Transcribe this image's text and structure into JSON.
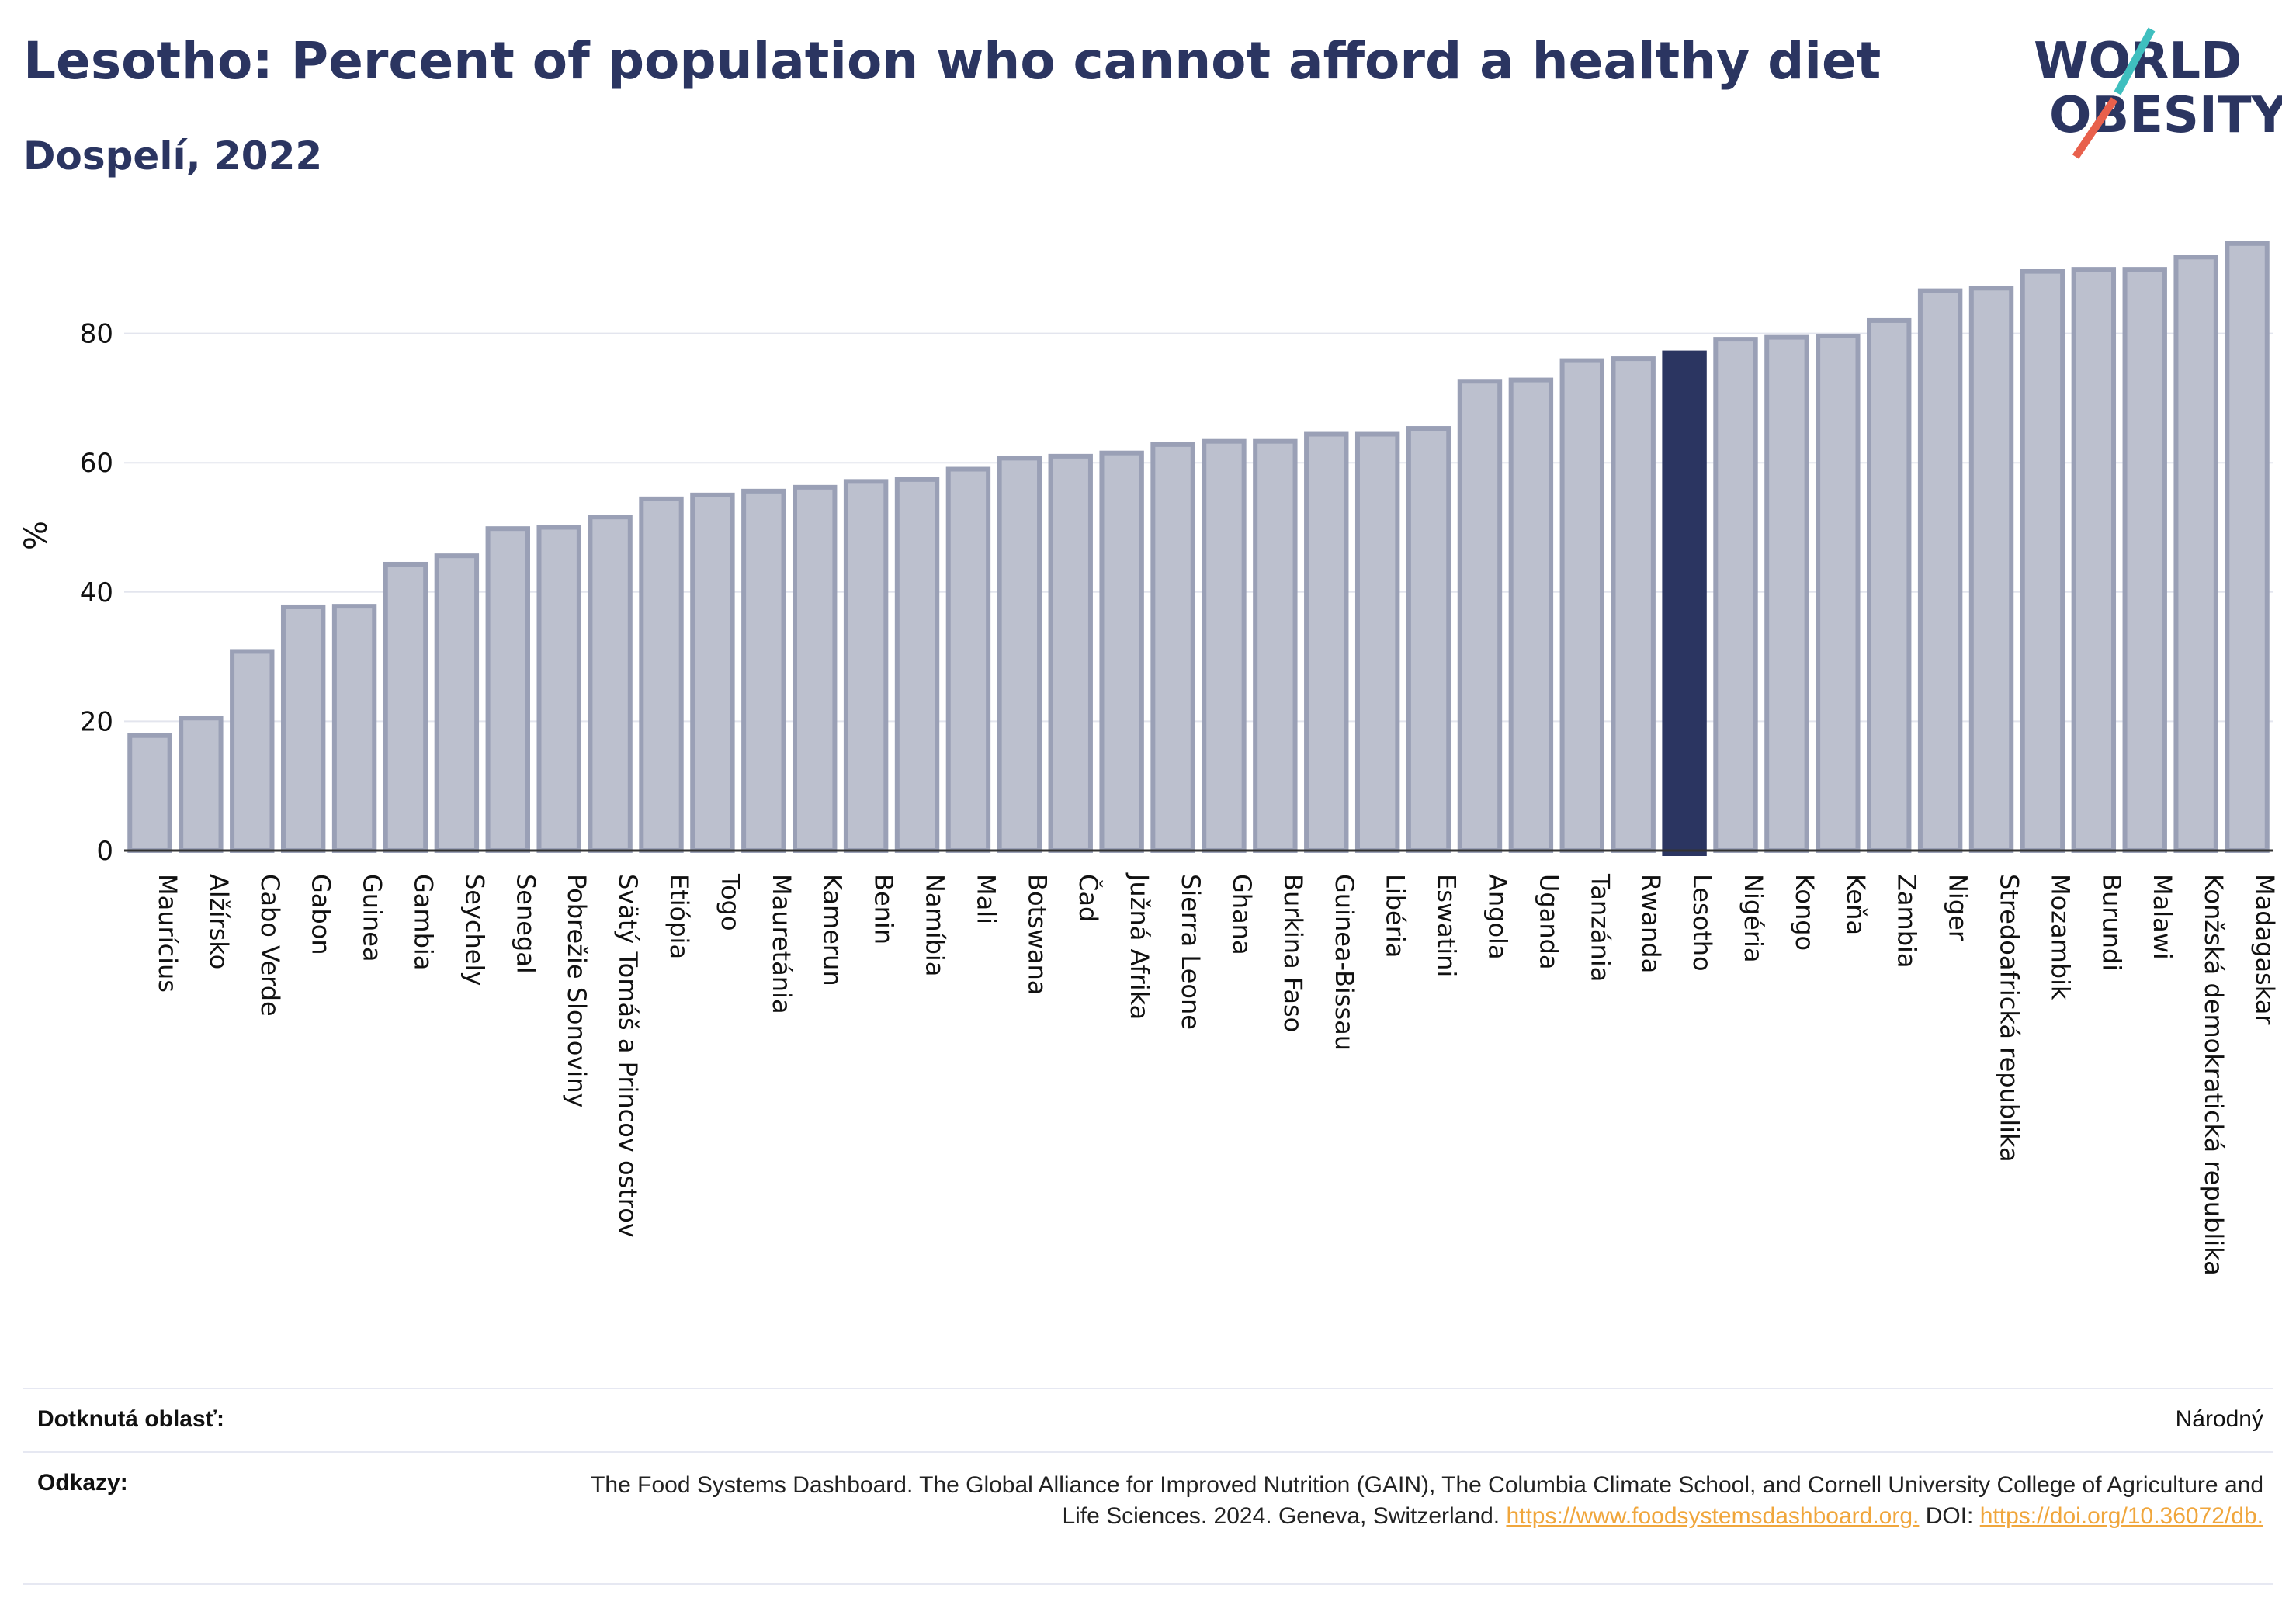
{
  "header": {
    "title": "Lesotho: Percent of population who cannot afford a healthy diet",
    "subtitle": "Dospelí, 2022"
  },
  "logo": {
    "line1": "WORLD",
    "line2": "OBESITY",
    "colors": {
      "text": "#2b3561",
      "accent_teal": "#3fbfbf",
      "accent_red": "#e8604c"
    }
  },
  "colors": {
    "bar": "#bcc0ce",
    "bar_stroke": "#9aa0b6",
    "highlight": "#2b3561",
    "grid": "#e3e5ee",
    "axis": "#333333"
  },
  "chart_data": {
    "type": "bar",
    "ylabel": "%",
    "ylim": [
      0,
      95
    ],
    "yticks": [
      0,
      20,
      40,
      60,
      80
    ],
    "grid": true,
    "highlight": "Lesotho",
    "categories": [
      "Maurícius",
      "Alžírsko",
      "Cabo Verde",
      "Gabon",
      "Guinea",
      "Gambia",
      "Seychely",
      "Senegal",
      "Pobrežie Slonoviny",
      "Svätý Tomáš a Princov ostrov",
      "Etiópia",
      "Togo",
      "Mauretánia",
      "Kamerun",
      "Benin",
      "Namíbia",
      "Mali",
      "Botswana",
      "Čad",
      "Južná Afrika",
      "Sierra Leone",
      "Ghana",
      "Burkina Faso",
      "Guinea-Bissau",
      "Libéria",
      "Eswatini",
      "Angola",
      "Uganda",
      "Tanzánia",
      "Rwanda",
      "Lesotho",
      "Nigéria",
      "Kongo",
      "Keňa",
      "Zambia",
      "Niger",
      "Stredoafrická republika",
      "Mozambik",
      "Burundi",
      "Malawi",
      "Konžská demokratická republika",
      "Madagaskar"
    ],
    "values": [
      17.8,
      20.5,
      30.8,
      37.7,
      37.8,
      44.3,
      45.6,
      49.8,
      50.0,
      51.6,
      54.4,
      55.0,
      55.6,
      56.2,
      57.1,
      57.4,
      59.0,
      60.7,
      61.0,
      61.5,
      62.8,
      63.3,
      63.3,
      64.4,
      64.4,
      65.3,
      72.6,
      72.8,
      75.8,
      76.1,
      77.0,
      79.1,
      79.4,
      79.6,
      82.0,
      86.6,
      87.0,
      89.6,
      89.9,
      89.9,
      91.8,
      93.9
    ]
  },
  "meta": {
    "area_label": "Dotknutá oblasť:",
    "area_value": "Národný",
    "ref_label": "Odkazy:",
    "ref_text_1": "The Food Systems Dashboard. The Global Alliance for Improved Nutrition (GAIN), The Columbia Climate School, and Cornell University College of Agriculture and Life Sciences. 2024. Geneva, Switzerland. ",
    "ref_link_1": "https://www.foodsystemsdashboard.org.",
    "ref_text_2": " DOI: ",
    "ref_link_2": "https://doi.org/10.36072/db."
  }
}
